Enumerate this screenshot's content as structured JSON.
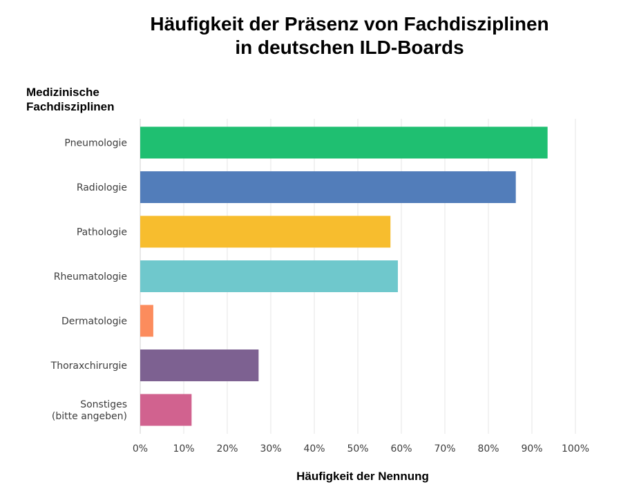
{
  "chart_data": {
    "type": "bar",
    "orientation": "horizontal",
    "title_lines": [
      "Häufigkeit der Präsenz von Fachdisziplinen",
      "in deutschen ILD-Boards"
    ],
    "ylabel_lines": [
      "Medizinische",
      "Fachdisziplinen"
    ],
    "xlabel": "Häufigkeit der Nennung",
    "categories": [
      [
        "Pneumologie"
      ],
      [
        "Radiologie"
      ],
      [
        "Pathologie"
      ],
      [
        "Rheumatologie"
      ],
      [
        "Dermatologie"
      ],
      [
        "Thoraxchirurgie"
      ],
      [
        "Sonstiges",
        "(bitte angeben)"
      ]
    ],
    "values": [
      93.6,
      86.3,
      57.5,
      59.2,
      3.0,
      27.2,
      11.8
    ],
    "colors": [
      "#1fbf71",
      "#527dba",
      "#f7bd2e",
      "#6fc8cc",
      "#fc8c5d",
      "#7d6191",
      "#d1628f"
    ],
    "xlim": [
      0,
      100
    ],
    "xticks": [
      0,
      10,
      20,
      30,
      40,
      50,
      60,
      70,
      80,
      90,
      100
    ],
    "tick_suffix": "%",
    "grid": true
  }
}
